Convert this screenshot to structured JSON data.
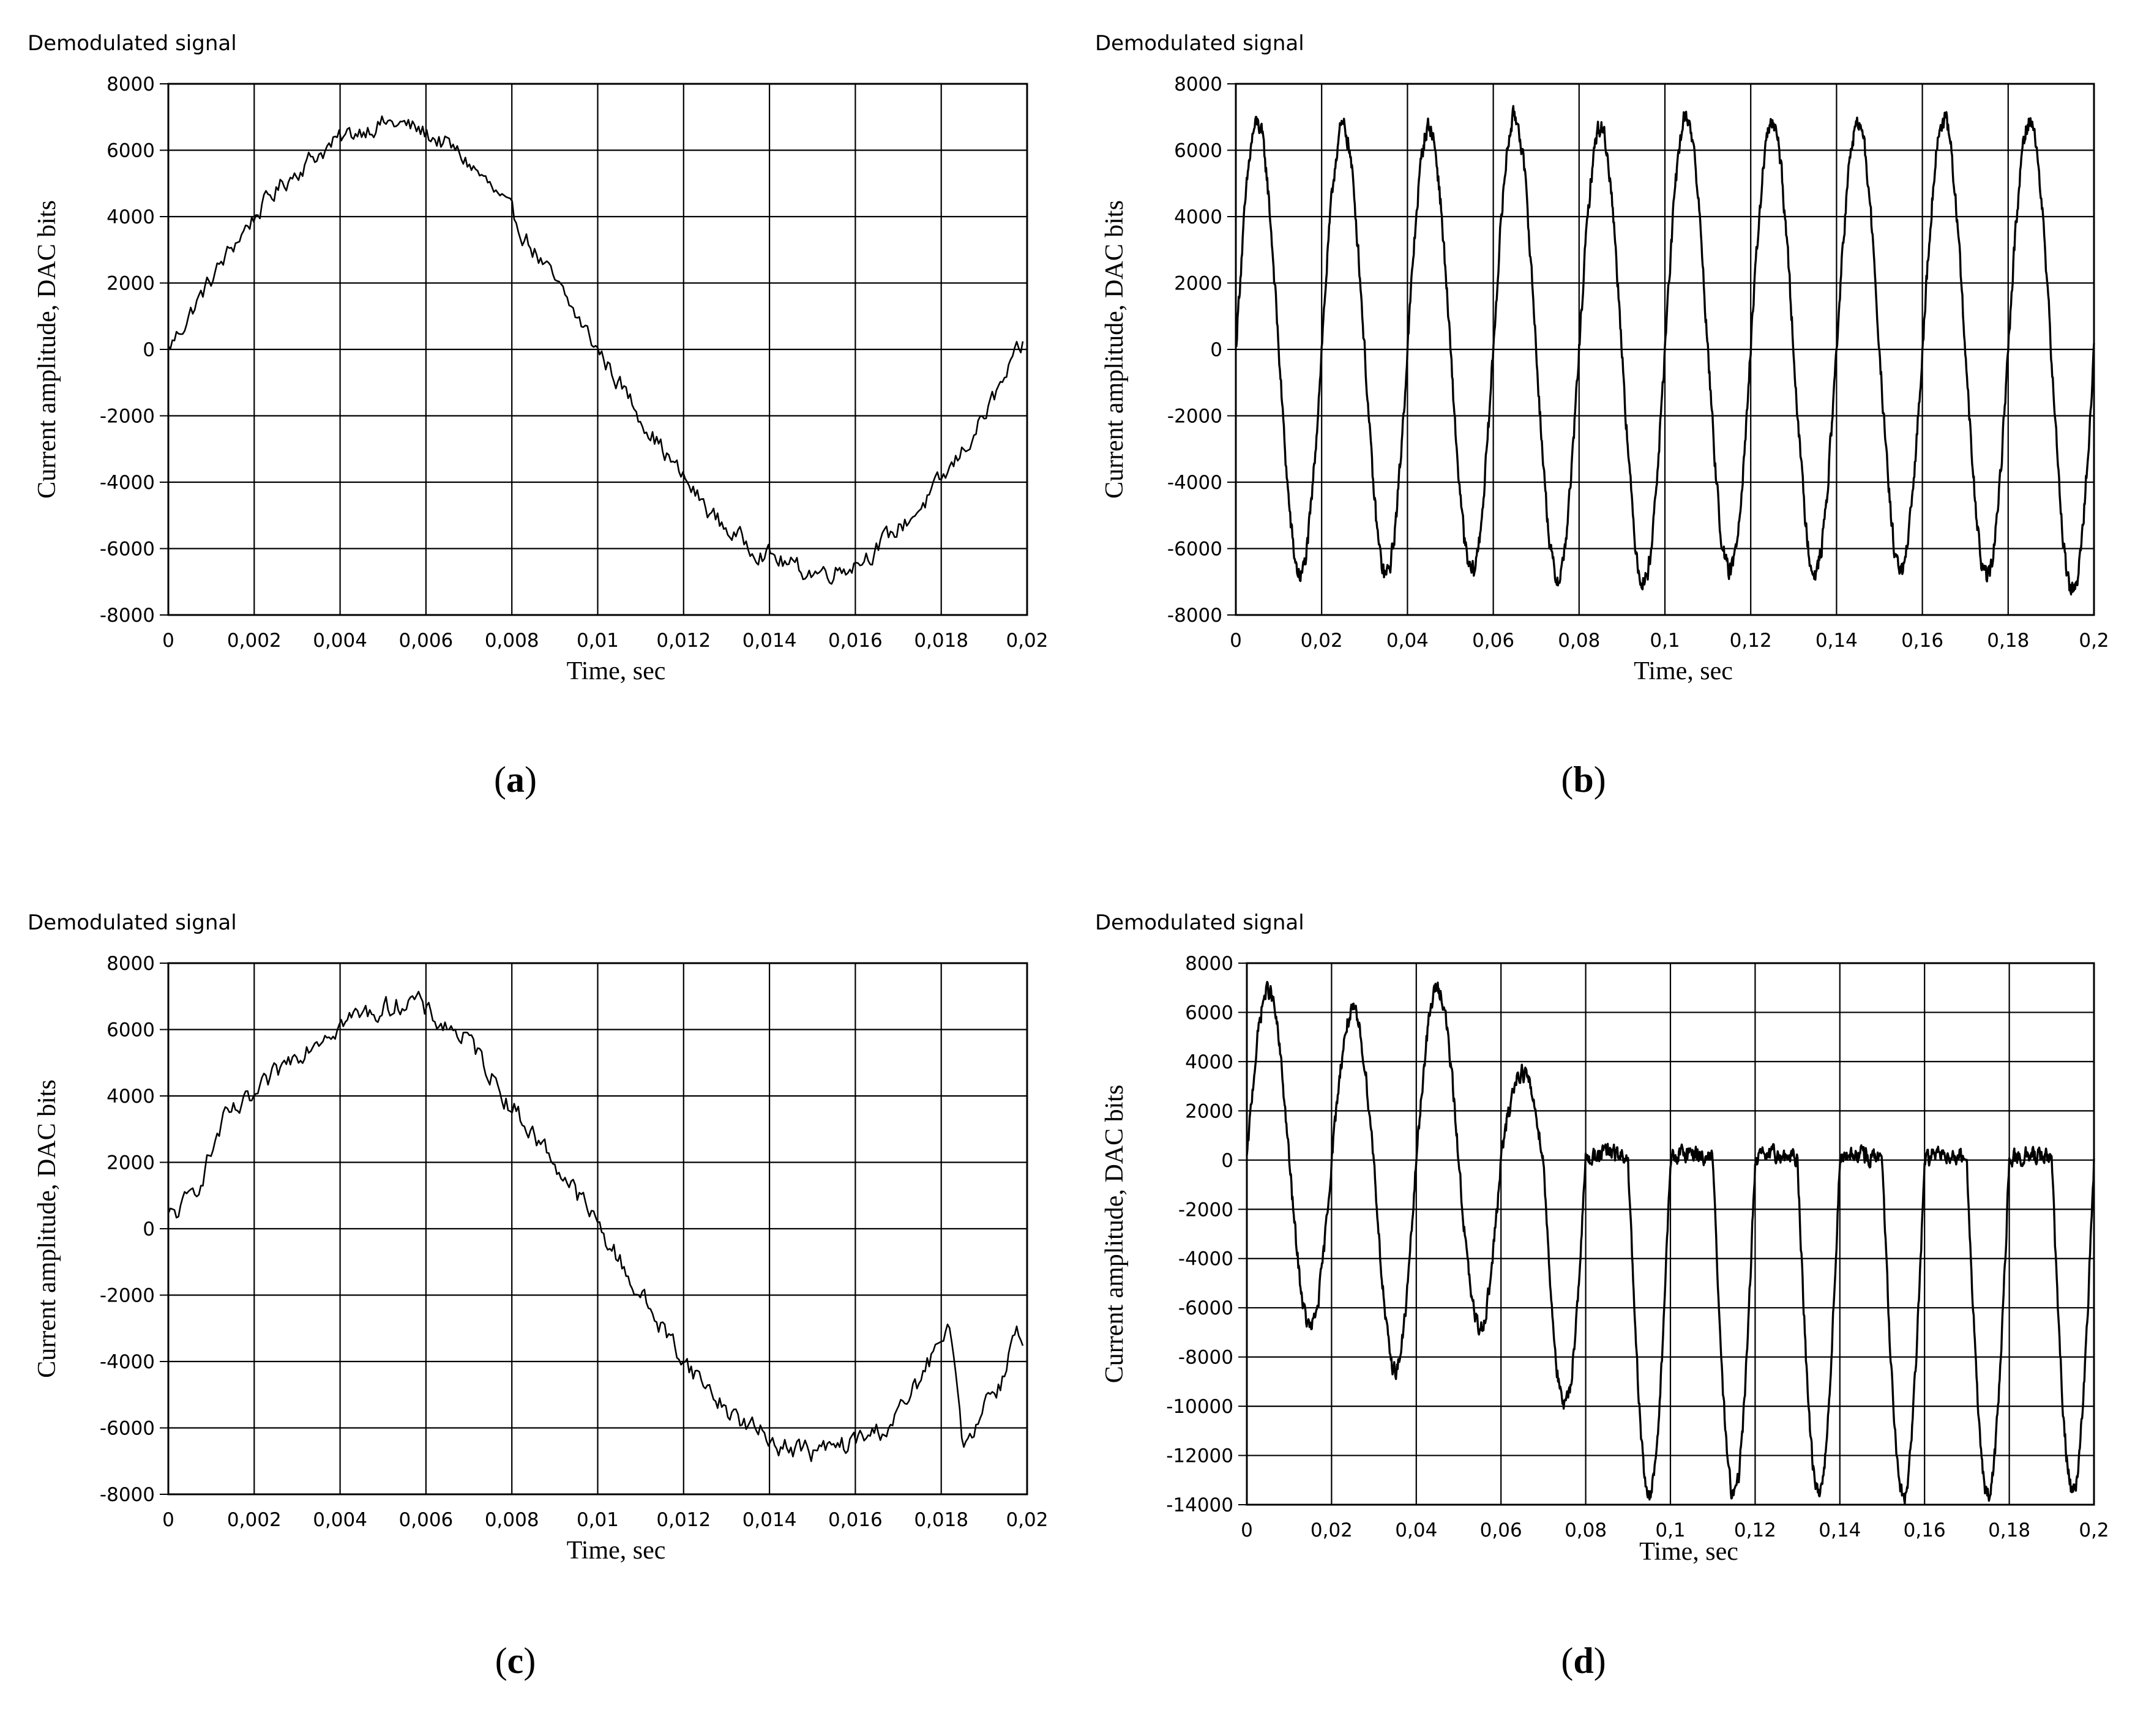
{
  "chart_data": [
    {
      "id": "a",
      "type": "line",
      "title": "Demodulated signal",
      "xlabel": "Time, sec",
      "ylabel": "Current amplitude, DAC bits",
      "caption_open": "(",
      "caption_letter": "a",
      "caption_close": ")",
      "xlim": [
        0,
        0.02
      ],
      "ylim": [
        -8000,
        8000
      ],
      "x_ticks": [
        "0",
        "0,002",
        "0,004",
        "0,006",
        "0,008",
        "0,01",
        "0,012",
        "0,014",
        "0,016",
        "0,018",
        "0,02"
      ],
      "y_ticks": [
        "8000",
        "6000",
        "4000",
        "2000",
        "0",
        "-2000",
        "-4000",
        "-6000",
        "-8000"
      ],
      "grid": true,
      "series": [
        {
          "name": "Demodulated signal",
          "x_end": 0.0199,
          "points": [
            [
              0,
              0
            ],
            [
              0.001,
              2100
            ],
            [
              0.002,
              4000
            ],
            [
              0.003,
              5400
            ],
            [
              0.004,
              6300
            ],
            [
              0.005,
              6800
            ],
            [
              0.006,
              6500
            ],
            [
              0.007,
              5600
            ],
            [
              0.008,
              4000
            ],
            [
              0.009,
              2000
            ],
            [
              0.01,
              0
            ],
            [
              0.011,
              -2000
            ],
            [
              0.012,
              -3900
            ],
            [
              0.013,
              -5400
            ],
            [
              0.014,
              -6200
            ],
            [
              0.015,
              -6700
            ],
            [
              0.016,
              -6400
            ],
            [
              0.017,
              -5400
            ],
            [
              0.018,
              -4000
            ],
            [
              0.019,
              -2000
            ],
            [
              0.0199,
              100
            ]
          ],
          "noise": 250
        }
      ]
    },
    {
      "id": "b",
      "type": "line",
      "title": "Demodulated signal",
      "xlabel": "Time, sec",
      "ylabel": "Current amplitude, DAC bits",
      "caption_open": "(",
      "caption_letter": "b",
      "caption_close": ")",
      "xlim": [
        0,
        0.2
      ],
      "ylim": [
        -8000,
        8000
      ],
      "x_ticks": [
        "0",
        "0,02",
        "0,04",
        "0,06",
        "0,08",
        "0,1",
        "0,12",
        "0,14",
        "0,16",
        "0,18",
        "0,2"
      ],
      "y_ticks": [
        "8000",
        "6000",
        "4000",
        "2000",
        "0",
        "-2000",
        "-4000",
        "-6000",
        "-8000"
      ],
      "grid": true,
      "series": [
        {
          "name": "Demodulated signal",
          "frequency_hz": 50,
          "period_s": 0.02,
          "peak_values": [
            6800,
            6700,
            6700,
            7000,
            6700,
            7000,
            6800,
            6800,
            6900,
            6900
          ],
          "trough_values": [
            -6800,
            -6800,
            -6700,
            -6900,
            -7000,
            -6700,
            -6700,
            -6700,
            -6900,
            -7300
          ],
          "noise": 250
        }
      ]
    },
    {
      "id": "c",
      "type": "line",
      "title": "Demodulated signal",
      "xlabel": "Time, sec",
      "ylabel": "Current amplitude, DAC bits",
      "caption_open": "(",
      "caption_letter": "c",
      "caption_close": ")",
      "xlim": [
        0,
        0.02
      ],
      "ylim": [
        -8000,
        8000
      ],
      "x_ticks": [
        "0",
        "0,002",
        "0,004",
        "0,006",
        "0,008",
        "0,01",
        "0,012",
        "0,014",
        "0,016",
        "0,018",
        "0,02"
      ],
      "y_ticks": [
        "8000",
        "6000",
        "4000",
        "2000",
        "0",
        "-2000",
        "-4000",
        "-6000",
        "-8000"
      ],
      "grid": true,
      "series": [
        {
          "name": "Demodulated signal",
          "x_end": 0.0199,
          "points": [
            [
              0,
              300
            ],
            [
              0.0005,
              900
            ],
            [
              0.001,
              2300
            ],
            [
              0.0013,
              3200
            ],
            [
              0.002,
              3900
            ],
            [
              0.003,
              5300
            ],
            [
              0.004,
              6200
            ],
            [
              0.005,
              6600
            ],
            [
              0.0057,
              6900
            ],
            [
              0.006,
              6500
            ],
            [
              0.007,
              5600
            ],
            [
              0.008,
              3700
            ],
            [
              0.009,
              2000
            ],
            [
              0.01,
              100
            ],
            [
              0.011,
              -2000
            ],
            [
              0.012,
              -3900
            ],
            [
              0.013,
              -5400
            ],
            [
              0.014,
              -6300
            ],
            [
              0.015,
              -6700
            ],
            [
              0.016,
              -6400
            ],
            [
              0.017,
              -5600
            ],
            [
              0.018,
              -3500
            ],
            [
              0.0183,
              -3600
            ],
            [
              0.0185,
              -6300
            ],
            [
              0.019,
              -5200
            ],
            [
              0.0195,
              -4300
            ],
            [
              0.0197,
              -2800
            ],
            [
              0.0199,
              -3700
            ]
          ],
          "noise": 280
        }
      ]
    },
    {
      "id": "d",
      "type": "line",
      "title": "Demodulated signal",
      "xlabel": "Time, sec",
      "ylabel": "Current amplitude, DAC bits",
      "caption_open": "(",
      "caption_letter": "d",
      "caption_close": ")",
      "xlim": [
        0,
        0.2
      ],
      "ylim": [
        -14000,
        8000
      ],
      "x_ticks": [
        "0",
        "0,02",
        "0,04",
        "0,06",
        "0,08",
        "0,1",
        "0,12",
        "0,14",
        "0,16",
        "0,18",
        "0,2"
      ],
      "y_ticks": [
        "8000",
        "6000",
        "4000",
        "2000",
        "0",
        "-2000",
        "-4000",
        "-6000",
        "-8000",
        "-10000",
        "-12000",
        "-14000"
      ],
      "grid": true,
      "series": [
        {
          "name": "Demodulated signal",
          "frequency_hz": 50,
          "period_s": 0.02,
          "peak_values": [
            6900,
            6000,
            7000,
            3600,
            300,
            300,
            200,
            200,
            300,
            200
          ],
          "trough_values": [
            -6800,
            -8500,
            -6800,
            -10000,
            -13600,
            -13600,
            -13500,
            -13700,
            -13600,
            -13400
          ],
          "noise": 300
        }
      ]
    }
  ]
}
